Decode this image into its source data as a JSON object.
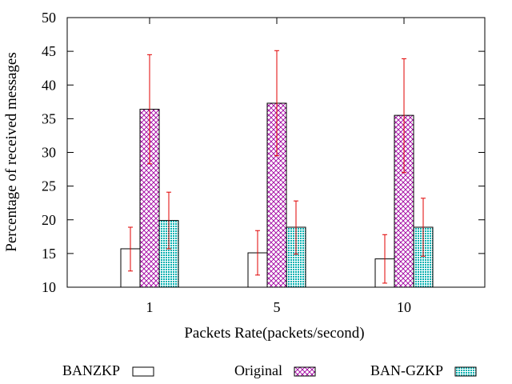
{
  "chart_data": {
    "type": "bar",
    "categories": [
      "1",
      "5",
      "10"
    ],
    "xlabel": "Packets Rate(packets/second)",
    "ylabel": "Percentage of received messages",
    "ylim": [
      10,
      50
    ],
    "yticks": [
      10,
      15,
      20,
      25,
      30,
      35,
      40,
      45,
      50
    ],
    "grid": false,
    "legend_position": "bottom",
    "series": [
      {
        "name": "BANZKP",
        "pattern": "empty",
        "color": "#000000",
        "values": [
          15.7,
          15.1,
          14.2
        ],
        "error_low": [
          12.4,
          11.8,
          10.6
        ],
        "error_high": [
          18.9,
          18.4,
          17.8
        ]
      },
      {
        "name": "Original",
        "pattern": "crosshatch",
        "color": "#a000a0",
        "values": [
          36.4,
          37.3,
          35.5
        ],
        "error_low": [
          28.3,
          29.5,
          27.0
        ],
        "error_high": [
          44.5,
          45.1,
          43.9
        ]
      },
      {
        "name": "BAN-GZKP",
        "pattern": "dots",
        "color": "#00a0a0",
        "values": [
          19.9,
          18.9,
          18.9
        ],
        "error_low": [
          15.7,
          14.9,
          14.6
        ],
        "error_high": [
          24.1,
          22.8,
          23.2
        ]
      }
    ],
    "error_bar_color": "#e00000"
  }
}
